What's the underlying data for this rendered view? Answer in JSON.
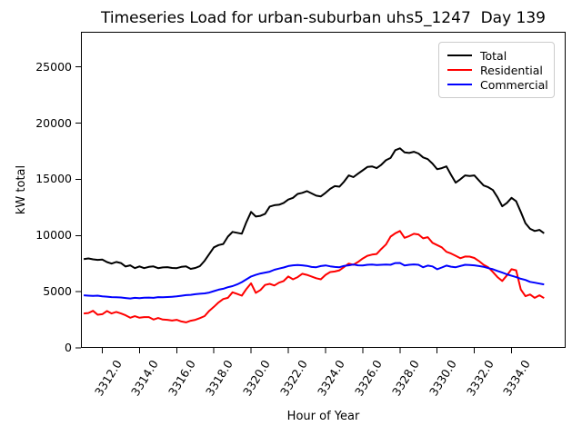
{
  "figure": {
    "title": "Timeseries Load for urban-suburban uhs5_1247  Day 139",
    "xlabel": "Hour of Year",
    "ylabel": "kW total"
  },
  "legend": {
    "position": "upper right",
    "items": [
      {
        "label": "Total",
        "color": "#000000"
      },
      {
        "label": "Residential",
        "color": "#ff0000"
      },
      {
        "label": "Commercial",
        "color": "#0000ff"
      }
    ]
  },
  "chart_data": {
    "type": "line",
    "title": "Timeseries Load for urban-suburban uhs5_1247  Day 139",
    "xlabel": "Hour of Year",
    "ylabel": "kW total",
    "grid": false,
    "legend_position": "upper right",
    "xlim": [
      3310.85,
      3336.91
    ],
    "ylim": [
      0,
      28130
    ],
    "x_ticks": [
      3312,
      3314,
      3316,
      3318,
      3320,
      3322,
      3324,
      3326,
      3328,
      3330,
      3332,
      3334
    ],
    "x_tick_labels": [
      "3312.0",
      "3314.0",
      "3316.0",
      "3318.0",
      "3320.0",
      "3322.0",
      "3324.0",
      "3326.0",
      "3328.0",
      "3330.0",
      "3332.0",
      "3334.0"
    ],
    "y_ticks": [
      0,
      5000,
      10000,
      15000,
      20000,
      25000
    ],
    "y_tick_labels": [
      "0",
      "5000",
      "10000",
      "15000",
      "20000",
      "25000"
    ],
    "x": [
      3311.0,
      3311.25,
      3311.5,
      3311.75,
      3312.0,
      3312.25,
      3312.5,
      3312.75,
      3313.0,
      3313.25,
      3313.5,
      3313.75,
      3314.0,
      3314.25,
      3314.5,
      3314.75,
      3315.0,
      3315.25,
      3315.5,
      3315.75,
      3316.0,
      3316.25,
      3316.5,
      3316.75,
      3317.0,
      3317.25,
      3317.5,
      3317.75,
      3318.0,
      3318.25,
      3318.5,
      3318.75,
      3319.0,
      3319.25,
      3319.5,
      3319.75,
      3320.0,
      3320.25,
      3320.5,
      3320.75,
      3321.0,
      3321.25,
      3321.5,
      3321.75,
      3322.0,
      3322.25,
      3322.5,
      3322.75,
      3323.0,
      3323.25,
      3323.5,
      3323.75,
      3324.0,
      3324.25,
      3324.5,
      3324.75,
      3325.0,
      3325.25,
      3325.5,
      3325.75,
      3326.0,
      3326.25,
      3326.5,
      3326.75,
      3327.0,
      3327.25,
      3327.5,
      3327.75,
      3328.0,
      3328.25,
      3328.5,
      3328.75,
      3329.0,
      3329.25,
      3329.5,
      3329.75,
      3330.0,
      3330.25,
      3330.5,
      3330.75,
      3331.0,
      3331.25,
      3331.5,
      3331.75,
      3332.0,
      3332.25,
      3332.5,
      3332.75,
      3333.0,
      3333.25,
      3333.5,
      3333.75,
      3334.0,
      3334.25,
      3334.5,
      3334.75,
      3335.0,
      3335.25,
      3335.5,
      3335.75
    ],
    "series": [
      {
        "name": "Total",
        "color": "#000000",
        "values": [
          7900,
          7960,
          7880,
          7830,
          7860,
          7640,
          7500,
          7650,
          7550,
          7240,
          7350,
          7100,
          7250,
          7100,
          7210,
          7250,
          7100,
          7160,
          7190,
          7110,
          7100,
          7210,
          7250,
          7030,
          7110,
          7280,
          7750,
          8350,
          8950,
          9150,
          9250,
          9900,
          10320,
          10240,
          10160,
          11200,
          12100,
          11690,
          11750,
          11930,
          12580,
          12700,
          12740,
          12900,
          13200,
          13350,
          13700,
          13800,
          13950,
          13750,
          13550,
          13480,
          13800,
          14150,
          14400,
          14350,
          14800,
          15350,
          15200,
          15500,
          15800,
          16100,
          16150,
          16000,
          16300,
          16700,
          16900,
          17600,
          17760,
          17400,
          17350,
          17450,
          17300,
          16950,
          16800,
          16400,
          15900,
          16000,
          16150,
          15400,
          14700,
          15000,
          15350,
          15300,
          15350,
          14900,
          14450,
          14300,
          14050,
          13400,
          12600,
          12900,
          13350,
          13050,
          12100,
          11100,
          10600,
          10400,
          10500,
          10200
        ]
      },
      {
        "name": "Residential",
        "color": "#ff0000",
        "values": [
          3060,
          3100,
          3300,
          2950,
          3000,
          3280,
          3060,
          3200,
          3060,
          2900,
          2680,
          2820,
          2680,
          2740,
          2740,
          2520,
          2660,
          2520,
          2500,
          2430,
          2500,
          2350,
          2270,
          2420,
          2500,
          2650,
          2830,
          3300,
          3650,
          4050,
          4350,
          4450,
          4950,
          4800,
          4650,
          5250,
          5750,
          4900,
          5150,
          5600,
          5700,
          5550,
          5800,
          5950,
          6350,
          6100,
          6300,
          6600,
          6500,
          6350,
          6200,
          6100,
          6500,
          6750,
          6800,
          6900,
          7200,
          7500,
          7400,
          7650,
          7950,
          8200,
          8300,
          8360,
          8800,
          9200,
          9900,
          10200,
          10400,
          9800,
          9950,
          10150,
          10100,
          9750,
          9850,
          9350,
          9150,
          8950,
          8550,
          8400,
          8200,
          7980,
          8130,
          8120,
          8000,
          7730,
          7400,
          7170,
          6760,
          6300,
          5960,
          6450,
          7000,
          6900,
          5200,
          4600,
          4750,
          4450,
          4680,
          4430
        ]
      },
      {
        "name": "Commercial",
        "color": "#0000ff",
        "values": [
          4680,
          4650,
          4620,
          4650,
          4580,
          4560,
          4520,
          4500,
          4490,
          4440,
          4400,
          4450,
          4430,
          4460,
          4480,
          4450,
          4520,
          4500,
          4530,
          4550,
          4580,
          4640,
          4700,
          4720,
          4780,
          4820,
          4850,
          4920,
          5050,
          5180,
          5260,
          5400,
          5500,
          5650,
          5850,
          6100,
          6350,
          6500,
          6620,
          6700,
          6780,
          6950,
          7060,
          7150,
          7280,
          7350,
          7380,
          7350,
          7300,
          7200,
          7180,
          7280,
          7340,
          7260,
          7200,
          7180,
          7300,
          7350,
          7420,
          7350,
          7330,
          7400,
          7420,
          7380,
          7400,
          7420,
          7400,
          7550,
          7560,
          7330,
          7400,
          7430,
          7400,
          7180,
          7320,
          7250,
          7000,
          7150,
          7320,
          7230,
          7180,
          7280,
          7400,
          7380,
          7350,
          7280,
          7220,
          7100,
          7000,
          6850,
          6700,
          6550,
          6420,
          6300,
          6150,
          6050,
          5880,
          5800,
          5720,
          5650
        ]
      }
    ]
  }
}
